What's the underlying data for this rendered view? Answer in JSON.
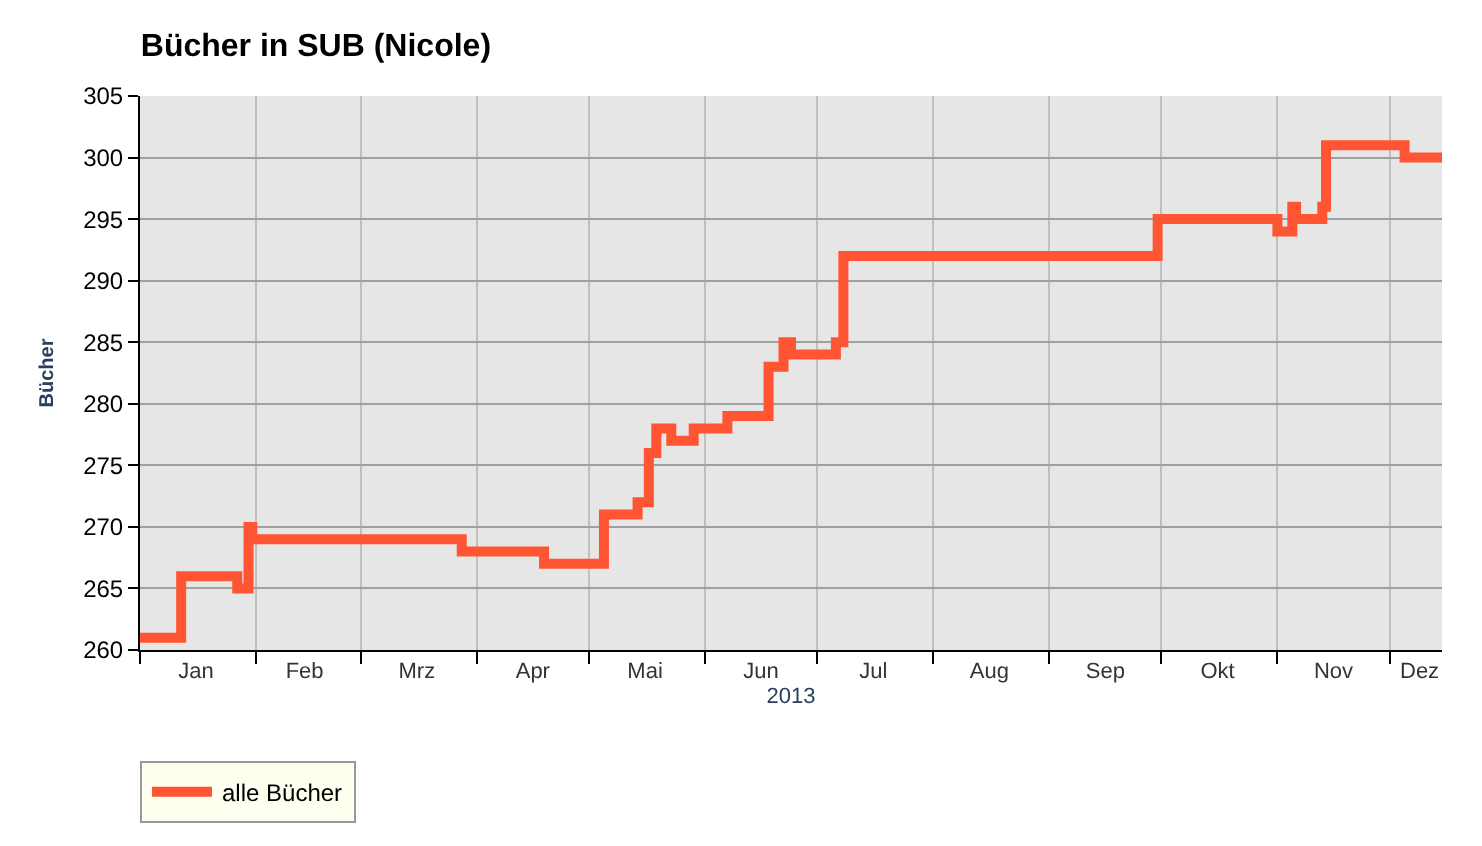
{
  "chart_data": {
    "type": "step",
    "title": "Bücher in SUB (Nicole)",
    "xlabel": "2013",
    "ylabel": "Bücher",
    "x": [
      "2013-01-01",
      "2013-01-12",
      "2013-01-27",
      "2013-01-30",
      "2013-01-31",
      "2013-03-28",
      "2013-04-19",
      "2013-05-05",
      "2013-05-14",
      "2013-05-17",
      "2013-05-19",
      "2013-05-23",
      "2013-05-29",
      "2013-06-07",
      "2013-06-18",
      "2013-06-22",
      "2013-06-24",
      "2013-07-06",
      "2013-07-08",
      "2013-09-30",
      "2013-11-01",
      "2013-11-05",
      "2013-11-06",
      "2013-11-13",
      "2013-11-14",
      "2013-12-05",
      "2013-12-15"
    ],
    "series": [
      {
        "name": "alle Bücher",
        "color": "#ff5533",
        "values": [
          261,
          266,
          265,
          270,
          269,
          268,
          267,
          271,
          272,
          276,
          278,
          277,
          278,
          279,
          283,
          285,
          284,
          285,
          292,
          295,
          294,
          296,
          295,
          296,
          301,
          300,
          300
        ]
      }
    ],
    "xlim": [
      "2013-01-01",
      "2013-12-15"
    ],
    "xticks": [
      {
        "value": "2013-01-01",
        "label": null
      },
      {
        "value": "2013-01-16",
        "label": "Jan"
      },
      {
        "value": "2013-02-01",
        "label": null
      },
      {
        "value": "2013-02-14",
        "label": "Feb"
      },
      {
        "value": "2013-03-01",
        "label": null
      },
      {
        "value": "2013-03-16",
        "label": "Mrz"
      },
      {
        "value": "2013-04-01",
        "label": null
      },
      {
        "value": "2013-04-16",
        "label": "Apr"
      },
      {
        "value": "2013-05-01",
        "label": null
      },
      {
        "value": "2013-05-16",
        "label": "Mai"
      },
      {
        "value": "2013-06-01",
        "label": null
      },
      {
        "value": "2013-06-16",
        "label": "Jun"
      },
      {
        "value": "2013-07-01",
        "label": null
      },
      {
        "value": "2013-07-16",
        "label": "Jul"
      },
      {
        "value": "2013-08-01",
        "label": null
      },
      {
        "value": "2013-08-16",
        "label": "Aug"
      },
      {
        "value": "2013-09-01",
        "label": null
      },
      {
        "value": "2013-09-16",
        "label": "Sep"
      },
      {
        "value": "2013-10-01",
        "label": null
      },
      {
        "value": "2013-10-16",
        "label": "Okt"
      },
      {
        "value": "2013-11-01",
        "label": null
      },
      {
        "value": "2013-11-16",
        "label": "Nov"
      },
      {
        "value": "2013-12-01",
        "label": null
      },
      {
        "value": "2013-12-09",
        "label": "Dez"
      }
    ],
    "ylim": [
      260,
      305
    ],
    "yticks": [
      260,
      265,
      270,
      275,
      280,
      285,
      290,
      295,
      300,
      305
    ],
    "grid": true,
    "legend": "bottom",
    "marker": "none",
    "line_style": "solid"
  }
}
